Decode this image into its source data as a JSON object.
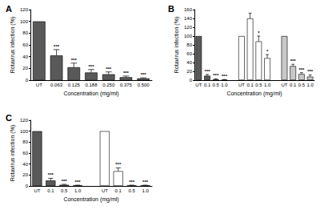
{
  "chart_data": [
    {
      "type": "bar",
      "title": "A",
      "categories": [
        "UT",
        "0.063",
        "0.125",
        "0.188",
        "0.250",
        "0.375",
        "0.500"
      ],
      "values": [
        100,
        42,
        22,
        13,
        10,
        5,
        3
      ],
      "errors": [
        0,
        10,
        7,
        5,
        4,
        2,
        1
      ],
      "annotations": [
        null,
        "***",
        "***",
        "***",
        "***",
        "***",
        "***"
      ],
      "colors": [
        "#595959",
        "#595959",
        "#595959",
        "#595959",
        "#595959",
        "#595959",
        "#595959"
      ],
      "x_label": "Concentration (mg/ml)",
      "y_label": "Rotavirus infection (%)",
      "ylim": [
        0,
        120
      ],
      "yticks": [
        0,
        20,
        40,
        60,
        80,
        100,
        120
      ],
      "grid": false
    },
    {
      "type": "bar",
      "title": "B",
      "categories": [
        "UT",
        "0.1",
        "0.5",
        "1.0",
        null,
        "UT",
        "0.1",
        "0.5",
        "1.0",
        null,
        "UT",
        "0.1",
        "0.5",
        "1.0"
      ],
      "values": [
        100,
        10,
        2,
        1,
        null,
        100,
        140,
        88,
        50,
        null,
        100,
        32,
        14,
        8
      ],
      "errors": [
        0,
        3,
        1,
        0.5,
        null,
        0,
        12,
        12,
        8,
        null,
        0,
        4,
        3,
        4
      ],
      "annotations": [
        null,
        "***",
        "***",
        "***",
        null,
        null,
        null,
        "*",
        "*",
        null,
        null,
        "***",
        "***",
        "***"
      ],
      "colors": [
        "#595959",
        "#595959",
        "#595959",
        "#595959",
        null,
        "#ffffff",
        "#ffffff",
        "#ffffff",
        "#ffffff",
        null,
        "#c8c8c8",
        "#c8c8c8",
        "#c8c8c8",
        "#c8c8c8"
      ],
      "x_label": "Concentration (mg/ml)",
      "y_label": "Rotavirus infection (%)",
      "ylim": [
        0,
        160
      ],
      "yticks": [
        0,
        20,
        40,
        60,
        80,
        100,
        120,
        140,
        160
      ],
      "grid": false
    },
    {
      "type": "bar",
      "title": "C",
      "categories": [
        "UT",
        "0.1",
        "0.5",
        "1.0",
        null,
        "UT",
        "0.1",
        "0.5",
        "1.0"
      ],
      "values": [
        100,
        10,
        2,
        1,
        null,
        100,
        27,
        1,
        1
      ],
      "errors": [
        0,
        4,
        1,
        0.5,
        null,
        0,
        6,
        0.5,
        0.5
      ],
      "annotations": [
        null,
        "***",
        "***",
        "***",
        null,
        null,
        "***",
        "***",
        "***"
      ],
      "colors": [
        "#595959",
        "#595959",
        "#595959",
        "#595959",
        null,
        "#ffffff",
        "#ffffff",
        "#ffffff",
        "#ffffff"
      ],
      "x_label": "Concentration (mg/ml)",
      "y_label": "Rotavirus infection (%)",
      "ylim": [
        0,
        120
      ],
      "yticks": [
        0,
        20,
        40,
        60,
        80,
        100,
        120
      ],
      "grid": false
    }
  ]
}
